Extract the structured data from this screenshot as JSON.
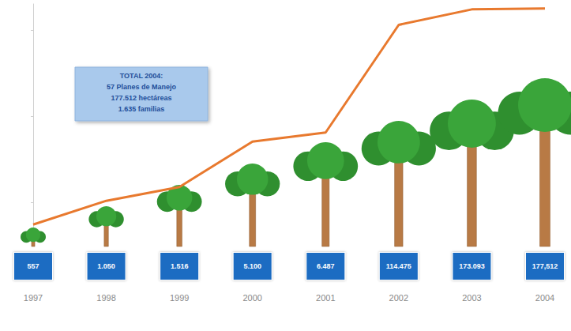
{
  "chart_data": {
    "type": "line",
    "categories": [
      "1997",
      "1998",
      "1999",
      "2000",
      "2001",
      "2002",
      "2003",
      "2004"
    ],
    "values": [
      557,
      1050,
      1516,
      5100,
      6487,
      114475,
      173093,
      177512
    ],
    "value_labels": [
      "557",
      "1.050",
      "1.516",
      "5.100",
      "6.487",
      "114.475",
      "173.093",
      "177,512"
    ],
    "color": "#e8792e",
    "log": "y",
    "ylim": [
      400,
      200000
    ],
    "yticks": [
      1000,
      10000,
      100000
    ],
    "grid": false,
    "tick_labels": "x",
    "data_labels": true,
    "annotation": [
      "TOTAL 2004:",
      "57 Planes de Manejo",
      "177.512 hectáreas",
      "1.635 familias"
    ]
  }
}
